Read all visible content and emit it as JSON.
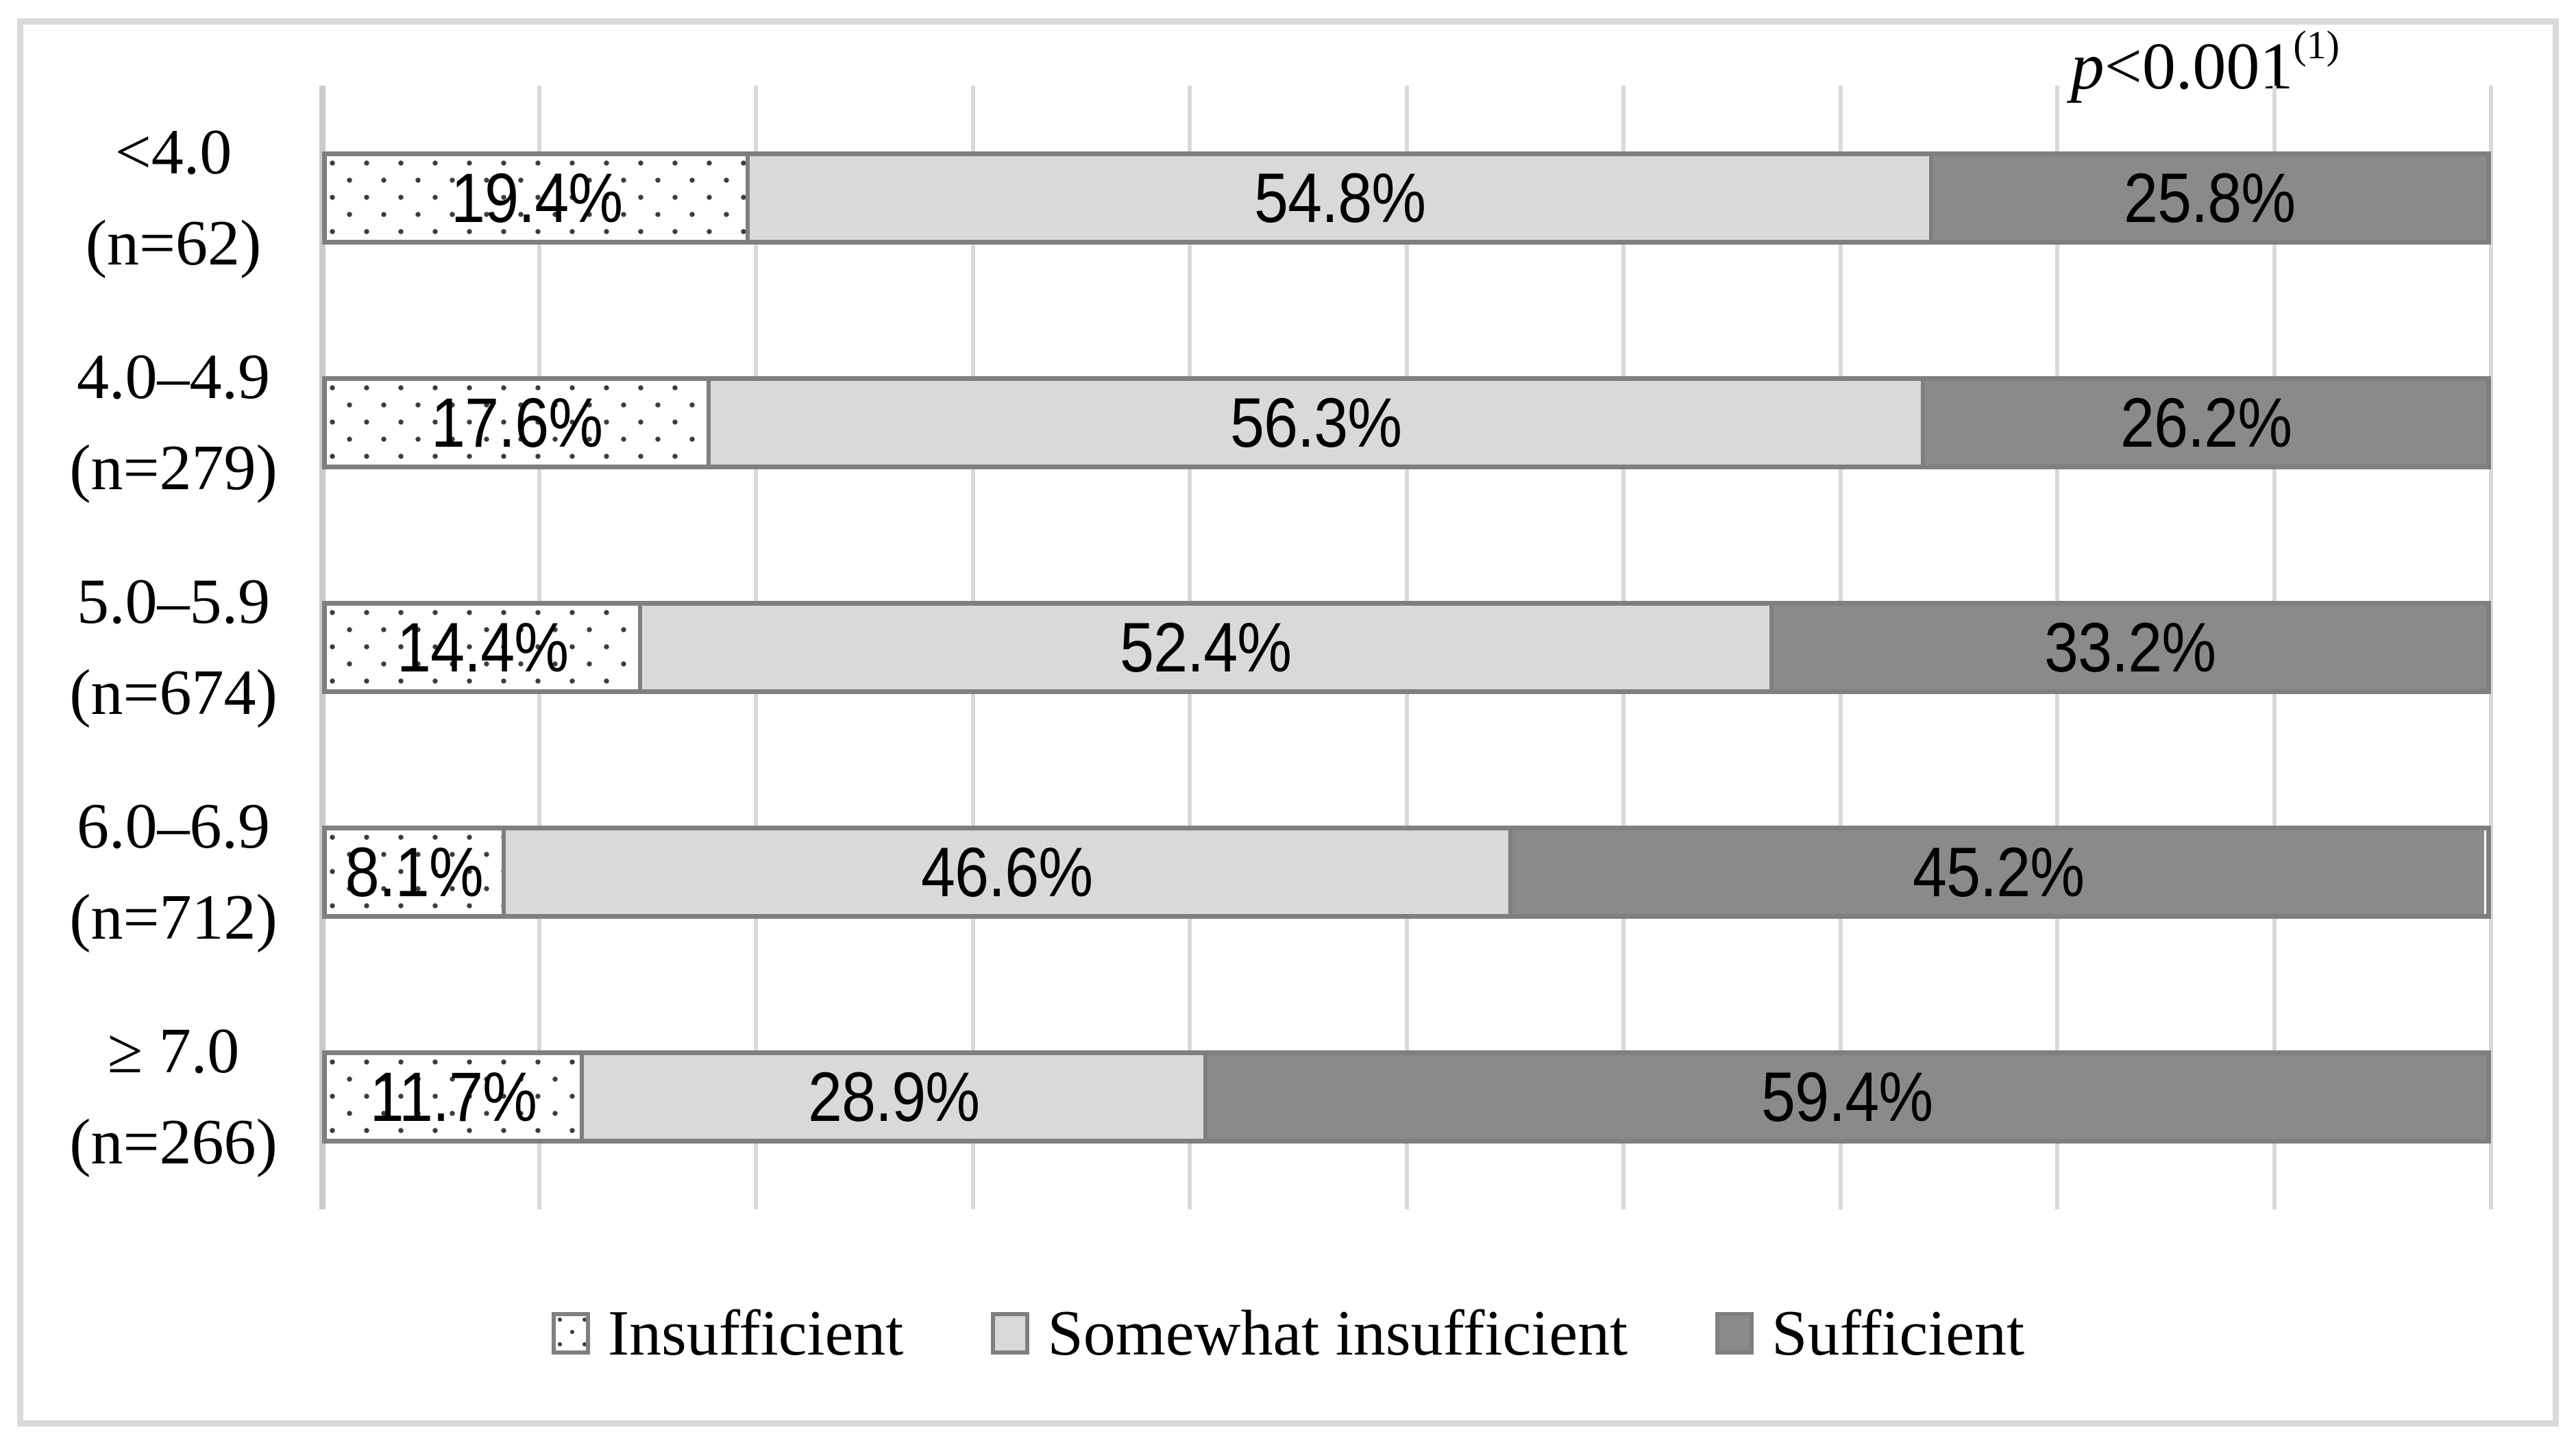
{
  "annotation": {
    "p_symbol": "p",
    "value": "<0.001",
    "superscript": "(1)"
  },
  "chart_data": {
    "type": "bar",
    "orientation": "horizontal",
    "stacked": true,
    "title": "",
    "xlabel": "",
    "ylabel": "",
    "xlim": [
      0,
      100
    ],
    "unit": "%",
    "gridline_interval_pct": 10,
    "axis_tick_labels_visible": false,
    "grid": true,
    "legend_position": "bottom",
    "annotation_text": "p<0.001(1)",
    "categories": [
      {
        "range": "<4.0",
        "n_label": "(n=62)"
      },
      {
        "range": "4.0–4.9",
        "n_label": "(n=279)"
      },
      {
        "range": "5.0–5.9",
        "n_label": "(n=674)"
      },
      {
        "range": "6.0–6.9",
        "n_label": "(n=712)"
      },
      {
        "range": "≥ 7.0",
        "n_label": "(n=266)"
      }
    ],
    "series": [
      {
        "name": "Insufficient",
        "style": "dotted-pattern",
        "fill": "#ffffff",
        "dot_color": "#3c3c3c",
        "values": [
          19.4,
          17.6,
          14.4,
          8.1,
          11.7
        ],
        "labels": [
          "19.4%",
          "17.6%",
          "14.4%",
          "8.1%",
          "11.7%"
        ]
      },
      {
        "name": "Somewhat insufficient",
        "style": "solid",
        "fill": "#d9d9d9",
        "values": [
          54.8,
          56.3,
          52.4,
          46.6,
          28.9
        ],
        "labels": [
          "54.8%",
          "56.3%",
          "52.4%",
          "46.6%",
          "28.9%"
        ]
      },
      {
        "name": "Sufficient",
        "style": "solid",
        "fill": "#8a8a8a",
        "values": [
          25.8,
          26.2,
          33.2,
          45.2,
          59.4
        ],
        "labels": [
          "25.8%",
          "26.2%",
          "33.2%",
          "45.2%",
          "59.4%"
        ]
      }
    ]
  },
  "legend": {
    "items": [
      {
        "label": "Insufficient",
        "swatch": "dotted"
      },
      {
        "label": "Somewhat insufficient",
        "swatch": "#d9d9d9"
      },
      {
        "label": "Sufficient",
        "swatch": "#8a8a8a"
      }
    ]
  },
  "colors": {
    "bar_border": "#7f7f7f",
    "gridline": "#d9d9d9",
    "frame_border": "#d9d9d9",
    "light_segment": "#d9d9d9",
    "dark_segment": "#8a8a8a"
  }
}
